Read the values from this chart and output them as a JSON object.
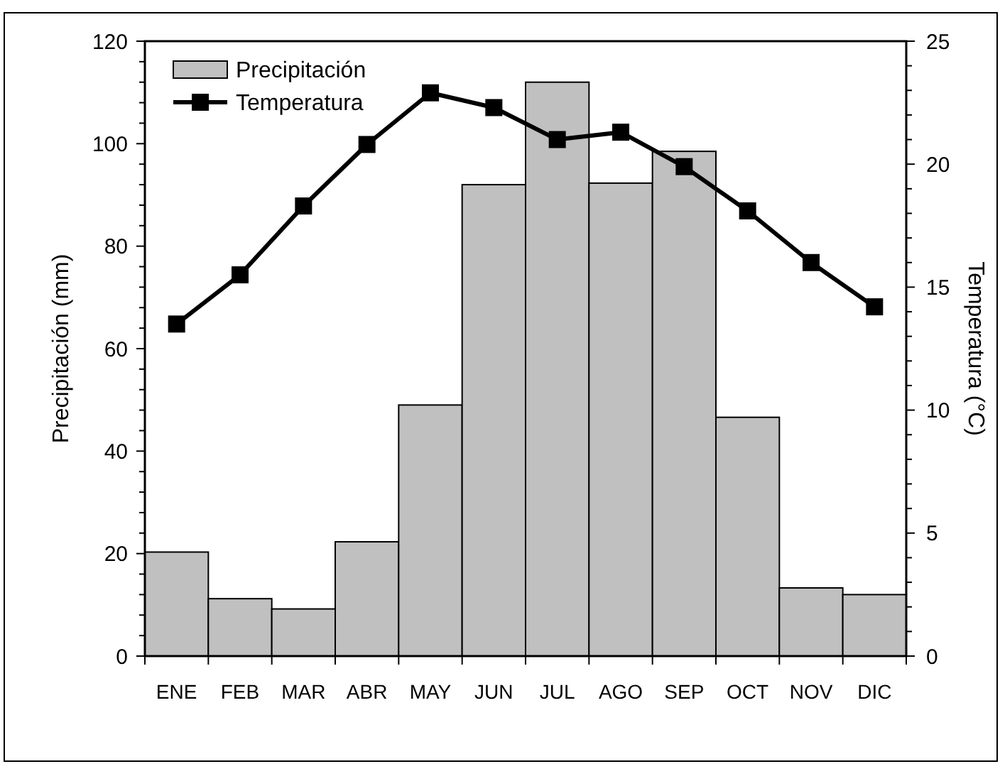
{
  "chart_data": {
    "type": "bar",
    "categories": [
      "ENE",
      "FEB",
      "MAR",
      "ABR",
      "MAY",
      "JUN",
      "JUL",
      "AGO",
      "SEP",
      "OCT",
      "NOV",
      "DIC"
    ],
    "series": [
      {
        "name": "Precipitación",
        "color": "#c0c0c0",
        "values": [
          20.3,
          11.2,
          9.2,
          22.3,
          49,
          92,
          112,
          92.3,
          98.5,
          46.6,
          13.3,
          12
        ]
      },
      {
        "name": "Temperatura",
        "type": "line",
        "axis": "y2",
        "color": "#000000",
        "marker": "square",
        "values": [
          13.5,
          15.5,
          18.3,
          20.8,
          22.9,
          22.3,
          21.0,
          21.3,
          19.9,
          18.1,
          16.0,
          14.2
        ]
      }
    ],
    "ylabel": "Precipitación (mm)",
    "y2label": "Temperatura  (°C)",
    "ylim": [
      0,
      120
    ],
    "yticks": [
      0,
      {
        "value": 4,
        "label": null
      },
      {
        "value": 8,
        "label": null
      },
      {
        "value": 12,
        "label": null
      },
      {
        "value": 16,
        "label": null
      },
      20,
      {
        "value": 24,
        "label": null
      },
      {
        "value": 28,
        "label": null
      },
      {
        "value": 32,
        "label": null
      },
      {
        "value": 36,
        "label": null
      },
      40,
      {
        "value": 44,
        "label": null
      },
      {
        "value": 48,
        "label": null
      },
      {
        "value": 52,
        "label": null
      },
      {
        "value": 56,
        "label": null
      },
      60,
      {
        "value": 64,
        "label": null
      },
      {
        "value": 68,
        "label": null
      },
      {
        "value": 72,
        "label": null
      },
      {
        "value": 76,
        "label": null
      },
      80,
      {
        "value": 84,
        "label": null
      },
      {
        "value": 88,
        "label": null
      },
      {
        "value": 92,
        "label": null
      },
      {
        "value": 96,
        "label": null
      },
      100,
      {
        "value": 104,
        "label": null
      },
      {
        "value": 108,
        "label": null
      },
      {
        "value": 112,
        "label": null
      },
      {
        "value": 116,
        "label": null
      },
      120
    ],
    "y2lim": [
      0,
      25
    ],
    "y2ticks": [
      0,
      {
        "value": 1,
        "label": null
      },
      {
        "value": 2,
        "label": null
      },
      {
        "value": 3,
        "label": null
      },
      {
        "value": 4,
        "label": null
      },
      5,
      {
        "value": 6,
        "label": null
      },
      {
        "value": 7,
        "label": null
      },
      {
        "value": 8,
        "label": null
      },
      {
        "value": 9,
        "label": null
      },
      10,
      {
        "value": 11,
        "label": null
      },
      {
        "value": 12,
        "label": null
      },
      {
        "value": 13,
        "label": null
      },
      {
        "value": 14,
        "label": null
      },
      15,
      {
        "value": 16,
        "label": null
      },
      {
        "value": 17,
        "label": null
      },
      {
        "value": 18,
        "label": null
      },
      {
        "value": 19,
        "label": null
      },
      20,
      {
        "value": 21,
        "label": null
      },
      {
        "value": 22,
        "label": null
      },
      {
        "value": 23,
        "label": null
      },
      {
        "value": 24,
        "label": null
      },
      25
    ],
    "grid": false,
    "legend": "top left"
  }
}
